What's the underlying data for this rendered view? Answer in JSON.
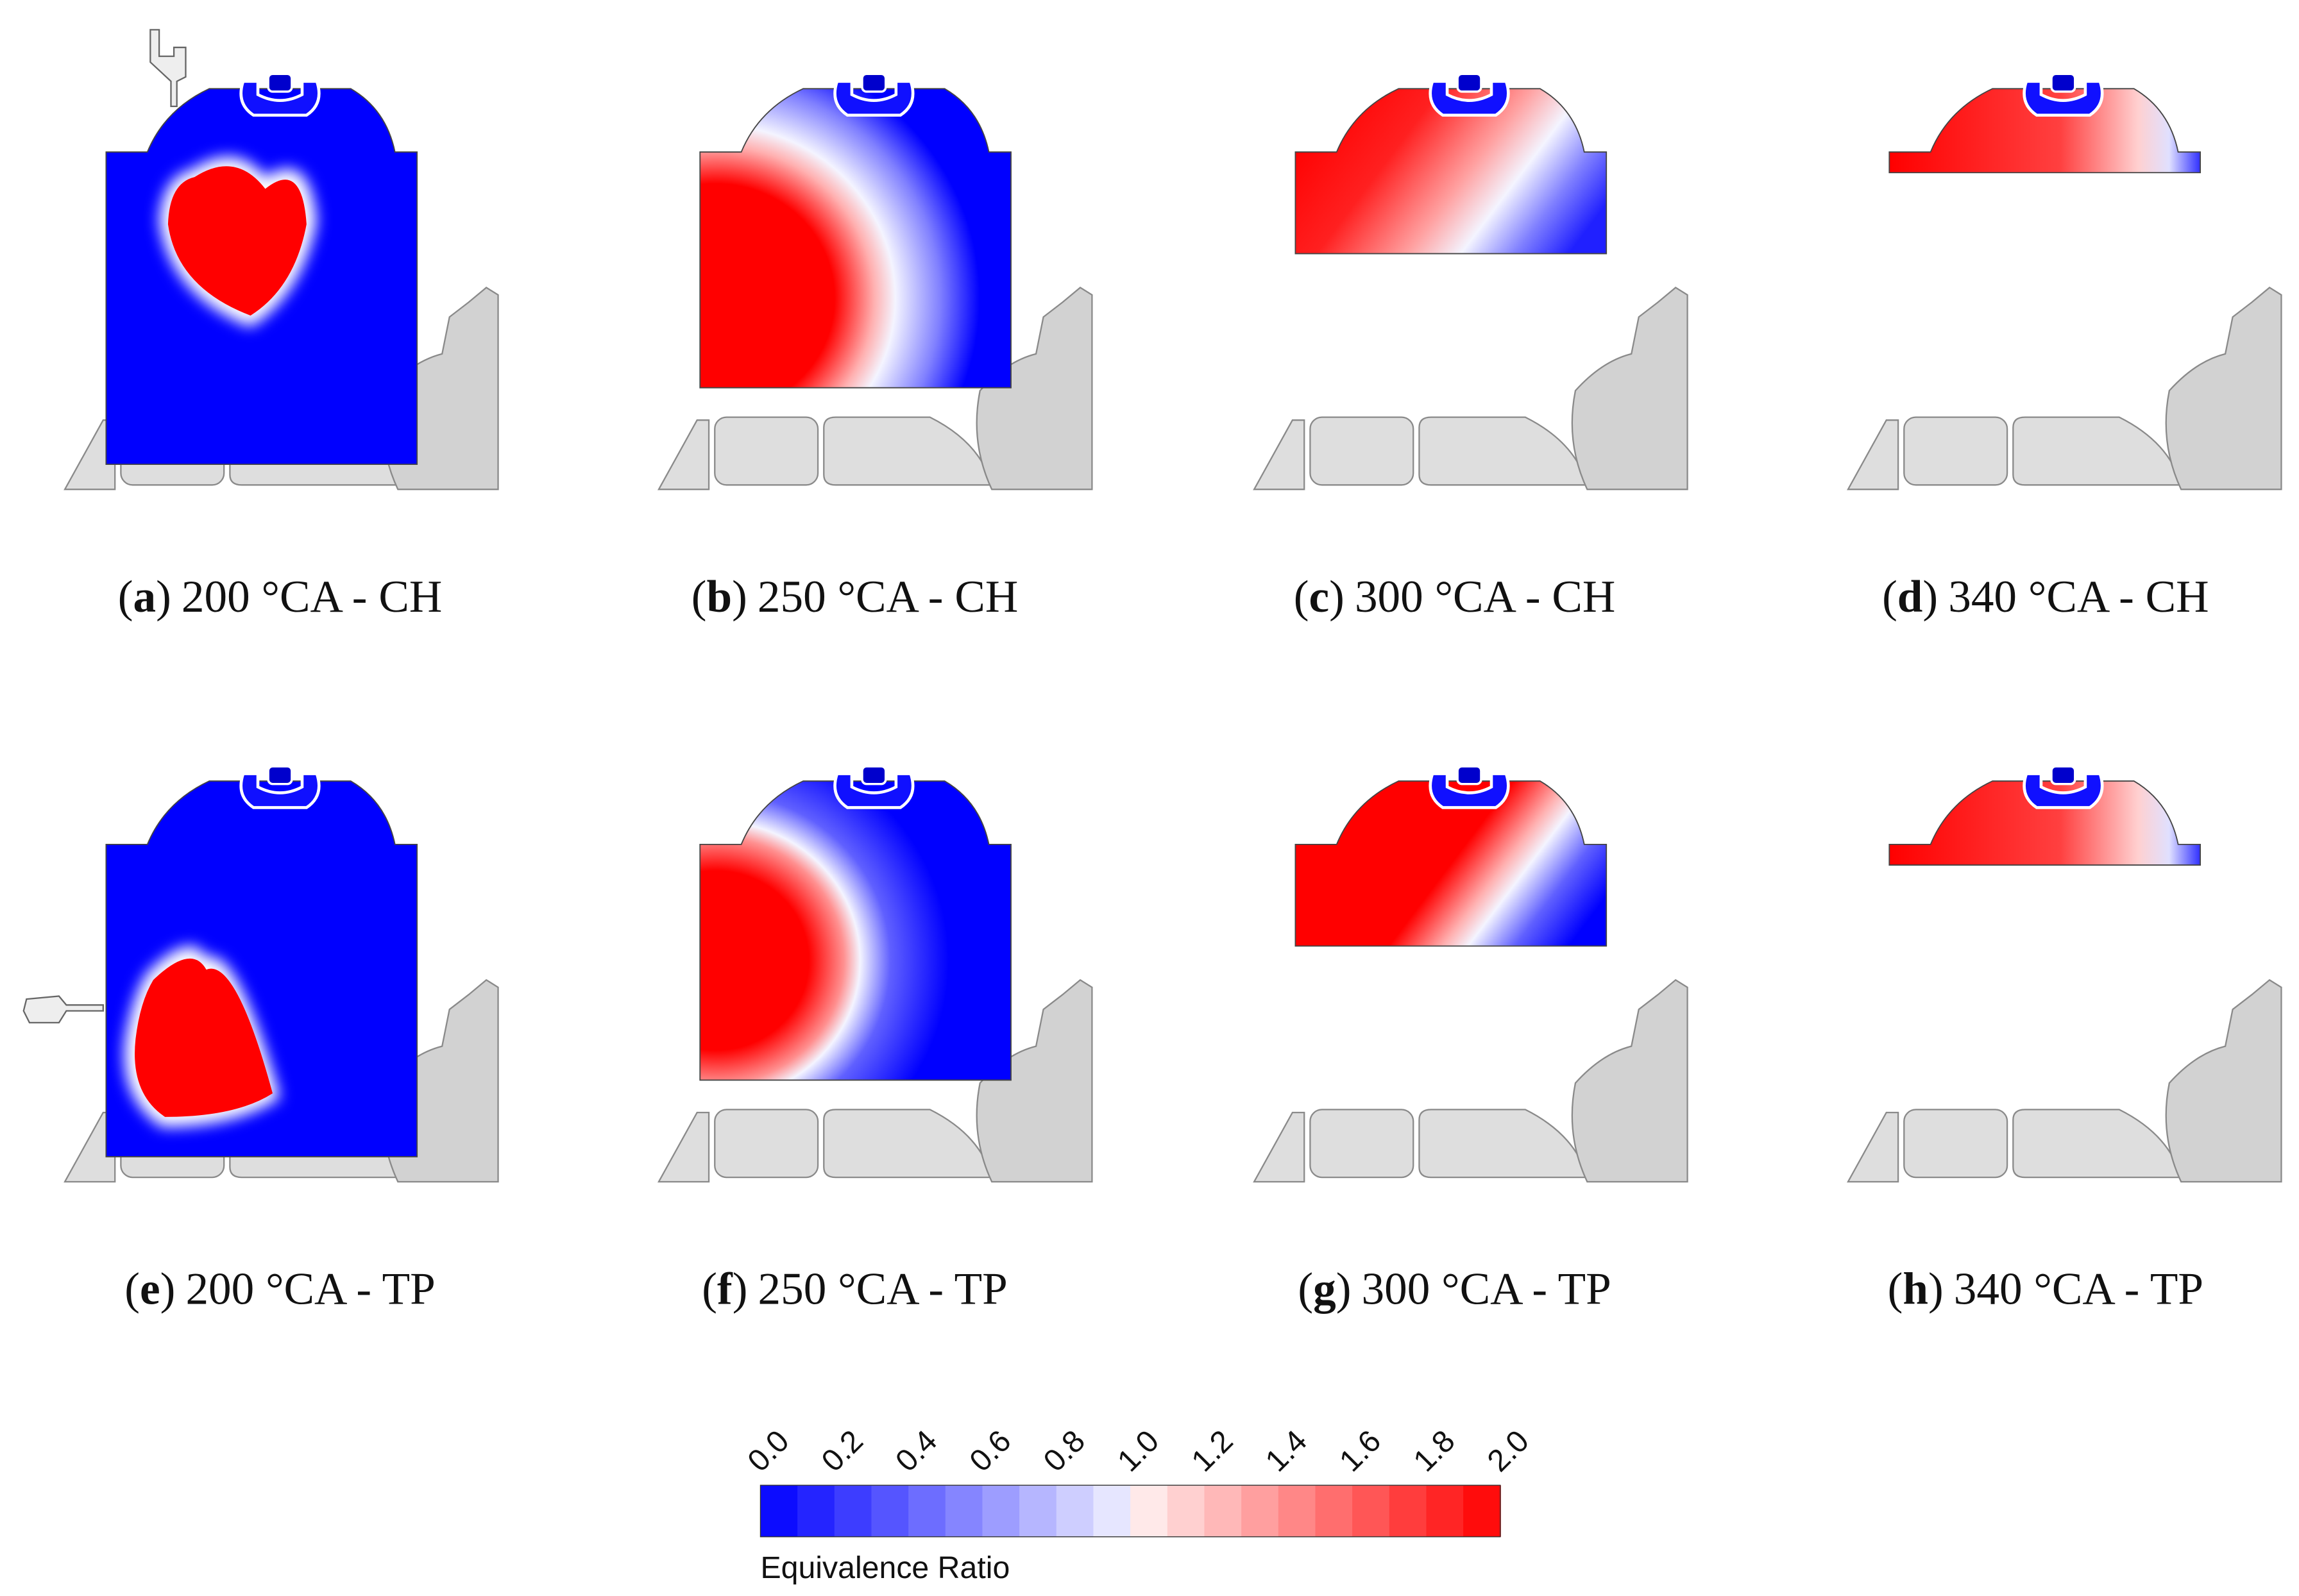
{
  "figure": {
    "panels": [
      {
        "caption": [
          "(",
          "a",
          ")",
          "200 °CA - CH"
        ]
      },
      {
        "caption": [
          "(",
          "b",
          ")",
          "250 °CA - CH"
        ]
      },
      {
        "caption": [
          "(",
          "c",
          ")",
          "300 °CA - CH"
        ]
      },
      {
        "caption": [
          "(",
          "d",
          ")",
          "340 °CA - CH"
        ]
      },
      {
        "caption": [
          "(",
          "e",
          ")",
          "200 °CA - TP"
        ]
      },
      {
        "caption": [
          "(",
          "f",
          ")",
          "250 °CA - TP"
        ]
      },
      {
        "caption": [
          "(",
          "g",
          ")",
          "300 °CA - TP"
        ]
      },
      {
        "caption": [
          "(",
          "h",
          ")",
          "340 °CA - TP"
        ]
      }
    ],
    "colorbar": {
      "title": "Equivalence Ratio",
      "ticks": [
        "0.0",
        "0.2",
        "0.4",
        "0.6",
        "0.8",
        "1.0",
        "1.2",
        "1.4",
        "1.6",
        "1.8",
        "2.0"
      ]
    }
  }
}
